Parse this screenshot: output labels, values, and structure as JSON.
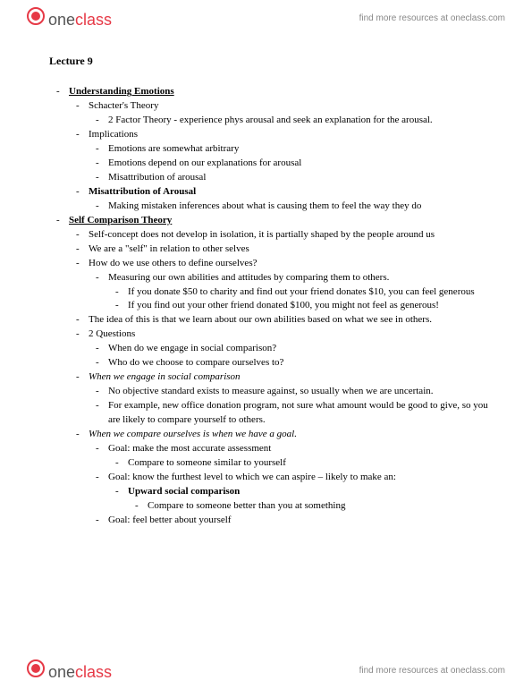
{
  "brand": {
    "part1": "one",
    "part2": "class"
  },
  "resources_text": "find more resources at oneclass.com",
  "title": "Lecture 9",
  "sections": [
    {
      "text": "Understanding Emotions",
      "style": "bold underline",
      "children": [
        {
          "text": "Schacter's Theory",
          "children": [
            {
              "text": "2 Factor Theory - experience phys arousal and seek an explanation for the arousal."
            }
          ]
        },
        {
          "text": "Implications",
          "children": [
            {
              "text": "Emotions are somewhat arbitrary"
            },
            {
              "text": "Emotions depend on our explanations for arousal"
            },
            {
              "text": "Misattribution of arousal"
            }
          ]
        },
        {
          "text": "Misattribution of Arousal",
          "style": "bold",
          "children": [
            {
              "text": "Making mistaken inferences about what is causing them to feel the way they do"
            }
          ]
        }
      ]
    },
    {
      "text": "Self Comparison Theory",
      "style": "bold underline",
      "children": [
        {
          "text": "Self-concept does not develop in isolation, it is partially shaped by the people around us"
        },
        {
          "text": "We are a \"self\" in relation to other selves"
        },
        {
          "text": "How do we use others to define ourselves?",
          "children": [
            {
              "text": "Measuring our own abilities and attitudes by comparing them to others.",
              "children": [
                {
                  "text": "If you donate $50 to charity and find out your friend donates $10, you can feel generous"
                },
                {
                  "text": "If you find out your other friend donated $100, you might not feel as generous!"
                }
              ]
            }
          ]
        },
        {
          "text": "The idea of this is that we learn about our own abilities based on what we see in others."
        },
        {
          "text": "2 Questions",
          "children": [
            {
              "text": "When do we engage in social comparison?"
            },
            {
              "text": "Who do we choose to compare ourselves to?"
            }
          ]
        },
        {
          "text": "When we engage in social comparison",
          "style": "italic",
          "children": [
            {
              "text": "No objective standard exists to measure against, so usually when we are uncertain."
            },
            {
              "text": "For example, new office donation program, not sure what amount would be good to give, so you are likely to compare yourself to others."
            }
          ]
        },
        {
          "text": "When we compare ourselves is when we have a goal.",
          "style": "italic",
          "children": [
            {
              "text": "Goal: make the most accurate assessment",
              "children": [
                {
                  "text": "Compare to someone similar to yourself"
                }
              ]
            },
            {
              "text": "Goal: know the furthest level to which we can aspire – likely to make an:",
              "children": [
                {
                  "text": "Upward social comparison",
                  "style": "bold",
                  "children": [
                    {
                      "text": "Compare to someone better than you at something"
                    }
                  ]
                }
              ]
            },
            {
              "text": "Goal: feel better about yourself"
            }
          ]
        }
      ]
    }
  ]
}
